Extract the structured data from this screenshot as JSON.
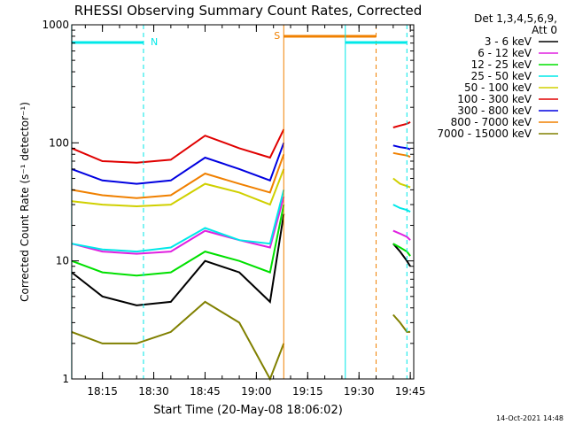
{
  "chart_data": {
    "type": "line",
    "title": "RHESSI Observing Summary Count Rates, Corrected",
    "xlabel": "Start Time (20-May-08 18:06:02)",
    "ylabel": "Corrected Count Rate (s⁻¹ detector⁻¹)",
    "yscale": "log",
    "ylim": [
      1,
      1000
    ],
    "y_ticks": [
      "1",
      "10",
      "100",
      "1000"
    ],
    "x_range": [
      "18:06:02",
      "19:46:00"
    ],
    "x_ticks": [
      "18:15",
      "18:30",
      "18:45",
      "19:00",
      "19:15",
      "19:30",
      "19:45"
    ],
    "legend_header": [
      "Det 1,3,4,5,6,9,",
      "Att 0"
    ],
    "legend_placement": "right",
    "footer_date": "14-Oct-2021 14:48",
    "times": [
      "18:06",
      "18:15",
      "18:25",
      "18:35",
      "18:45",
      "18:55",
      "19:04",
      "19:08",
      "19:40",
      "19:42",
      "19:44",
      "19:45"
    ],
    "series": [
      {
        "name": "3 - 6 keV",
        "color": "#000000",
        "values": [
          8,
          5,
          4.2,
          4.5,
          10,
          8,
          4.5,
          25,
          14,
          12,
          10,
          9
        ]
      },
      {
        "name": "6 - 12 keV",
        "color": "#e020e0",
        "values": [
          14,
          12,
          11.5,
          12,
          18,
          15,
          13,
          35,
          18,
          17,
          16,
          15
        ]
      },
      {
        "name": "12 - 25 keV",
        "color": "#00e000",
        "values": [
          10,
          8,
          7.5,
          8,
          12,
          10,
          8,
          30,
          14,
          13,
          12,
          11
        ]
      },
      {
        "name": "25 - 50 keV",
        "color": "#00e8e8",
        "values": [
          14,
          12.5,
          12,
          13,
          19,
          15,
          14,
          40,
          30,
          28,
          27,
          26
        ]
      },
      {
        "name": "50 - 100 keV",
        "color": "#d0d000",
        "values": [
          32,
          30,
          29,
          30,
          45,
          38,
          30,
          60,
          50,
          45,
          43,
          42
        ]
      },
      {
        "name": "100 - 300 keV",
        "color": "#e00000",
        "values": [
          90,
          70,
          68,
          72,
          115,
          90,
          75,
          130,
          135,
          140,
          145,
          150
        ]
      },
      {
        "name": "300 - 800 keV",
        "color": "#0000e0",
        "values": [
          60,
          48,
          45,
          48,
          75,
          60,
          48,
          100,
          95,
          92,
          90,
          88
        ]
      },
      {
        "name": "800 - 7000 keV",
        "color": "#f08000",
        "values": [
          40,
          36,
          34,
          36,
          55,
          45,
          38,
          80,
          82,
          80,
          78,
          76
        ]
      },
      {
        "name": "7000 - 15000 keV",
        "color": "#808000",
        "values": [
          2.5,
          2,
          2,
          2.5,
          4.5,
          3,
          1,
          2,
          3.5,
          3,
          2.5,
          2.5
        ]
      }
    ],
    "annotations": [
      {
        "label": "N",
        "color": "#00e8e8",
        "start": "18:06",
        "end": "18:27"
      },
      {
        "label": "S",
        "color": "#f08000",
        "start": "19:08",
        "end": "19:35"
      },
      {
        "label": "",
        "color": "#00e8e8",
        "start": "19:26",
        "end": "19:44"
      }
    ]
  }
}
